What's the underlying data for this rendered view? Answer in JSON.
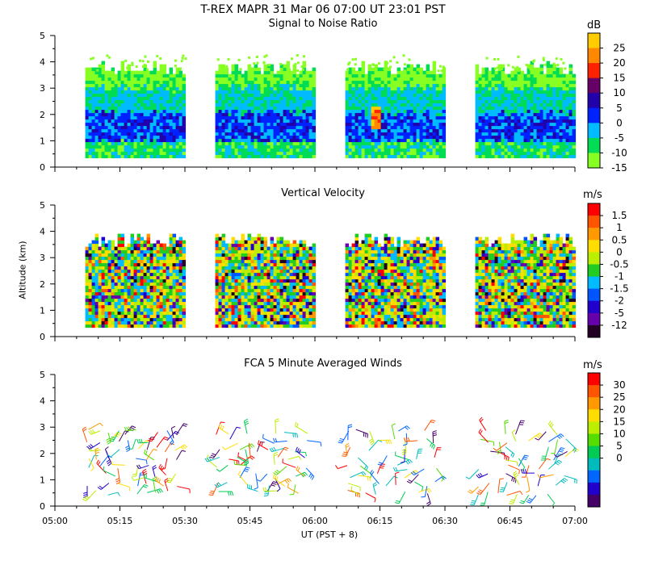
{
  "header": {
    "title": "T-REX   MAPR 31 Mar 06   07:00 UT   23:01   PST"
  },
  "chart_data": [
    {
      "type": "heatmap",
      "title": "Signal to Noise Ratio",
      "colorbar_unit": "dB",
      "colorbar_ticks": [
        "25",
        "20",
        "15",
        "10",
        "5",
        "0",
        "-5",
        "-10",
        "-15"
      ],
      "colors": [
        "#ffcc00",
        "#ff8800",
        "#ff2200",
        "#660066",
        "#2200aa",
        "#0022ff",
        "#00bbff",
        "#00dd55",
        "#88ff22"
      ],
      "ylim": [
        0,
        5
      ],
      "yticks": [
        "0",
        "1",
        "2",
        "3",
        "4",
        "5"
      ],
      "data_segments_ut": [
        [
          "05:07",
          "05:30"
        ],
        [
          "05:37",
          "06:00"
        ],
        [
          "06:07",
          "06:30"
        ],
        [
          "06:37",
          "07:00"
        ]
      ]
    },
    {
      "type": "heatmap",
      "title": "Vertical Velocity",
      "colorbar_unit": "m/s",
      "colorbar_ticks": [
        "1.5",
        "1",
        "0.5",
        "0",
        "-0.5",
        "-1",
        "-1.5",
        "-2",
        "-5",
        "-12"
      ],
      "colors": [
        "#ff0000",
        "#ff5500",
        "#ff9900",
        "#ffdd00",
        "#bbee00",
        "#22cc22",
        "#00bbff",
        "#0055ff",
        "#2200cc",
        "#6600aa",
        "#220022"
      ],
      "ylim": [
        0,
        5
      ],
      "yticks": [
        "0",
        "1",
        "2",
        "3",
        "4",
        "5"
      ],
      "ylabel": "Altitude (km)",
      "data_segments_ut": [
        [
          "05:07",
          "05:30"
        ],
        [
          "05:37",
          "06:00"
        ],
        [
          "06:07",
          "06:30"
        ],
        [
          "06:37",
          "07:00"
        ]
      ]
    },
    {
      "type": "scatter",
      "title": "FCA 5 Minute Averaged Winds",
      "colorbar_unit": "m/s",
      "colorbar_ticks": [
        "30",
        "25",
        "20",
        "15",
        "10",
        "5",
        "0"
      ],
      "colors": [
        "#ff0000",
        "#ff5500",
        "#ff9900",
        "#ffdd00",
        "#bbee00",
        "#55dd00",
        "#00cc55",
        "#00bbbb",
        "#0066ff",
        "#2200cc",
        "#440066"
      ],
      "ylim": [
        0,
        5
      ],
      "yticks": [
        "0",
        "1",
        "2",
        "3",
        "4",
        "5"
      ],
      "xticks": [
        "05:00",
        "05:15",
        "05:30",
        "05:45",
        "06:00",
        "06:15",
        "06:30",
        "06:45",
        "07:00"
      ],
      "xlabel": "UT  (PST + 8)"
    }
  ]
}
